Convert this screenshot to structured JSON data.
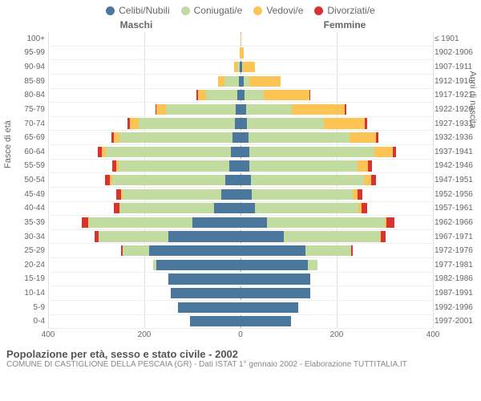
{
  "chart": {
    "type": "population-pyramid",
    "legend": [
      {
        "label": "Celibi/Nubili",
        "color": "#4b779c"
      },
      {
        "label": "Coniugati/e",
        "color": "#c1dba0"
      },
      {
        "label": "Vedovi/e",
        "color": "#fcc455"
      },
      {
        "label": "Divorziati/e",
        "color": "#d7342f"
      }
    ],
    "male_header": "Maschi",
    "female_header": "Femmine",
    "left_axis_title": "Fasce di età",
    "right_axis_title": "Anni di nascita",
    "xmax": 400,
    "xticks": [
      400,
      200,
      0,
      200,
      400
    ],
    "grid_color": "#e0e0e0",
    "center_color": "#aaaaaa",
    "background": "#ffffff",
    "tick_fontsize": 10,
    "label_fontsize": 10
  },
  "rows": [
    {
      "age": "100+",
      "birth": "≤ 1901",
      "m": {
        "cel": 0,
        "con": 0,
        "ved": 0,
        "div": 0
      },
      "f": {
        "cel": 0,
        "con": 0,
        "ved": 2,
        "div": 0
      }
    },
    {
      "age": "95-99",
      "birth": "1902-1906",
      "m": {
        "cel": 0,
        "con": 0,
        "ved": 1,
        "div": 0
      },
      "f": {
        "cel": 0,
        "con": 0,
        "ved": 6,
        "div": 0
      }
    },
    {
      "age": "90-94",
      "birth": "1907-1911",
      "m": {
        "cel": 2,
        "con": 5,
        "ved": 6,
        "div": 0
      },
      "f": {
        "cel": 3,
        "con": 2,
        "ved": 25,
        "div": 0
      }
    },
    {
      "age": "85-89",
      "birth": "1912-1916",
      "m": {
        "cel": 4,
        "con": 30,
        "ved": 12,
        "div": 0
      },
      "f": {
        "cel": 6,
        "con": 12,
        "ved": 65,
        "div": 0
      }
    },
    {
      "age": "80-84",
      "birth": "1917-1921",
      "m": {
        "cel": 6,
        "con": 65,
        "ved": 18,
        "div": 2
      },
      "f": {
        "cel": 8,
        "con": 40,
        "ved": 95,
        "div": 2
      }
    },
    {
      "age": "75-79",
      "birth": "1922-1926",
      "m": {
        "cel": 10,
        "con": 145,
        "ved": 20,
        "div": 2
      },
      "f": {
        "cel": 12,
        "con": 95,
        "ved": 110,
        "div": 3
      }
    },
    {
      "age": "70-74",
      "birth": "1927-1931",
      "m": {
        "cel": 12,
        "con": 200,
        "ved": 18,
        "div": 5
      },
      "f": {
        "cel": 14,
        "con": 160,
        "ved": 85,
        "div": 5
      }
    },
    {
      "age": "65-69",
      "birth": "1932-1936",
      "m": {
        "cel": 16,
        "con": 235,
        "ved": 12,
        "div": 6
      },
      "f": {
        "cel": 16,
        "con": 210,
        "ved": 55,
        "div": 6
      }
    },
    {
      "age": "60-64",
      "birth": "1937-1941",
      "m": {
        "cel": 20,
        "con": 260,
        "ved": 8,
        "div": 8
      },
      "f": {
        "cel": 18,
        "con": 260,
        "ved": 38,
        "div": 8
      }
    },
    {
      "age": "55-59",
      "birth": "1942-1946",
      "m": {
        "cel": 24,
        "con": 230,
        "ved": 5,
        "div": 8
      },
      "f": {
        "cel": 18,
        "con": 225,
        "ved": 22,
        "div": 8
      }
    },
    {
      "age": "50-54",
      "birth": "1947-1951",
      "m": {
        "cel": 32,
        "con": 235,
        "ved": 4,
        "div": 10
      },
      "f": {
        "cel": 22,
        "con": 235,
        "ved": 14,
        "div": 10
      }
    },
    {
      "age": "45-49",
      "birth": "1952-1956",
      "m": {
        "cel": 40,
        "con": 205,
        "ved": 3,
        "div": 10
      },
      "f": {
        "cel": 24,
        "con": 210,
        "ved": 10,
        "div": 10
      }
    },
    {
      "age": "40-44",
      "birth": "1957-1961",
      "m": {
        "cel": 55,
        "con": 195,
        "ved": 2,
        "div": 12
      },
      "f": {
        "cel": 30,
        "con": 215,
        "ved": 6,
        "div": 12
      }
    },
    {
      "age": "35-39",
      "birth": "1962-1966",
      "m": {
        "cel": 100,
        "con": 215,
        "ved": 1,
        "div": 14
      },
      "f": {
        "cel": 55,
        "con": 245,
        "ved": 4,
        "div": 16
      }
    },
    {
      "age": "30-34",
      "birth": "1967-1971",
      "m": {
        "cel": 150,
        "con": 145,
        "ved": 0,
        "div": 8
      },
      "f": {
        "cel": 90,
        "con": 200,
        "ved": 2,
        "div": 10
      }
    },
    {
      "age": "25-29",
      "birth": "1972-1976",
      "m": {
        "cel": 190,
        "con": 55,
        "ved": 0,
        "div": 3
      },
      "f": {
        "cel": 135,
        "con": 95,
        "ved": 0,
        "div": 4
      }
    },
    {
      "age": "20-24",
      "birth": "1977-1981",
      "m": {
        "cel": 175,
        "con": 6,
        "ved": 0,
        "div": 0
      },
      "f": {
        "cel": 140,
        "con": 20,
        "ved": 0,
        "div": 0
      }
    },
    {
      "age": "15-19",
      "birth": "1982-1986",
      "m": {
        "cel": 150,
        "con": 0,
        "ved": 0,
        "div": 0
      },
      "f": {
        "cel": 145,
        "con": 0,
        "ved": 0,
        "div": 0
      }
    },
    {
      "age": "10-14",
      "birth": "1987-1991",
      "m": {
        "cel": 145,
        "con": 0,
        "ved": 0,
        "div": 0
      },
      "f": {
        "cel": 145,
        "con": 0,
        "ved": 0,
        "div": 0
      }
    },
    {
      "age": "5-9",
      "birth": "1992-1996",
      "m": {
        "cel": 130,
        "con": 0,
        "ved": 0,
        "div": 0
      },
      "f": {
        "cel": 120,
        "con": 0,
        "ved": 0,
        "div": 0
      }
    },
    {
      "age": "0-4",
      "birth": "1997-2001",
      "m": {
        "cel": 105,
        "con": 0,
        "ved": 0,
        "div": 0
      },
      "f": {
        "cel": 105,
        "con": 0,
        "ved": 0,
        "div": 0
      }
    }
  ],
  "caption": {
    "title": "Popolazione per età, sesso e stato civile - 2002",
    "subtitle": "COMUNE DI CASTIGLIONE DELLA PESCAIA (GR) - Dati ISTAT 1° gennaio 2002 - Elaborazione TUTTITALIA.IT"
  }
}
